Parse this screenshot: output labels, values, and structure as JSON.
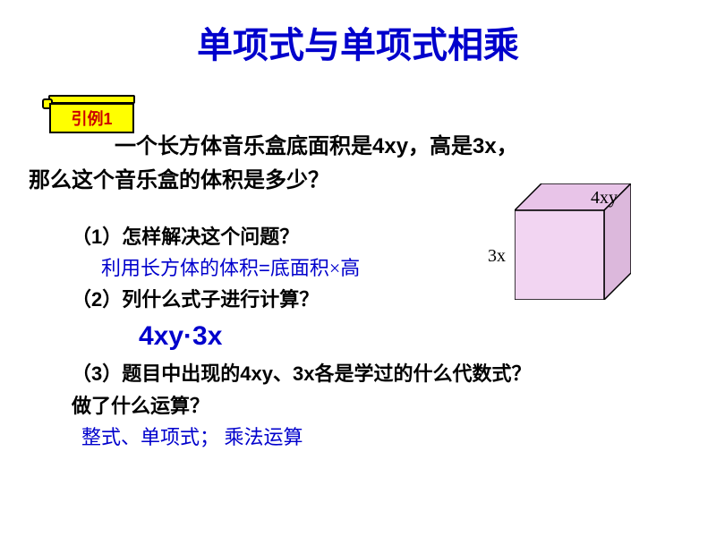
{
  "title": {
    "text": "单项式与单项式相乘",
    "color": "#0000cc",
    "fontsize": 40,
    "weight": "bold"
  },
  "label": {
    "text": "引例1",
    "color": "#cc0000",
    "fontsize": 18,
    "weight": "bold",
    "bg": "#ffff00"
  },
  "problem": {
    "line1_a": "一个长方体音乐盒底面积是",
    "line1_b": "4xy",
    "line1_c": "，高是",
    "line1_d": "3x",
    "line1_e": "，",
    "line2": "那么这个音乐盒的体积是多少？",
    "color": "#000000",
    "fontsize": 24,
    "weight": "bold"
  },
  "q1": {
    "prefix": "（",
    "num": "1",
    "suffix": "）怎样解决这个问题？",
    "color": "#000000",
    "fontsize": 22,
    "weight": "bold"
  },
  "a1": {
    "text_a": "利用长方体的体积",
    "text_b": "=",
    "text_c": "底面积×高",
    "color": "#0000cc",
    "fontsize": 22
  },
  "q2": {
    "text": "（2）列什么式子进行计算？",
    "color": "#000000",
    "fontsize": 22,
    "weight": "bold"
  },
  "a2": {
    "text": "4xy·3x",
    "color": "#0000cc",
    "fontsize": 30,
    "weight": "bold"
  },
  "q3": {
    "prefix": "（",
    "num": "3",
    "suffix_a": "）题目中出现的",
    "term1": "4xy",
    "mid": "、",
    "term2": "3x",
    "suffix_b": "各是学过的什么代数式？",
    "line2": "做了什么运算？",
    "color": "#000000",
    "fontsize": 22,
    "weight": "bold"
  },
  "a3": {
    "text": "整式、单项式； 乘法运算",
    "color": "#0000cc",
    "fontsize": 22
  },
  "cube": {
    "top_label": "4xy",
    "side_label": "3x",
    "label_fontsize": 20,
    "label_color": "#000000",
    "fill_front": "#f2d5f2",
    "fill_top": "#e8c4e8",
    "fill_side": "#dcb8dc",
    "stroke": "#000000",
    "stroke_width": 1.5,
    "width": 130,
    "height": 130,
    "front_w": 100,
    "front_h": 100,
    "depth": 30
  }
}
